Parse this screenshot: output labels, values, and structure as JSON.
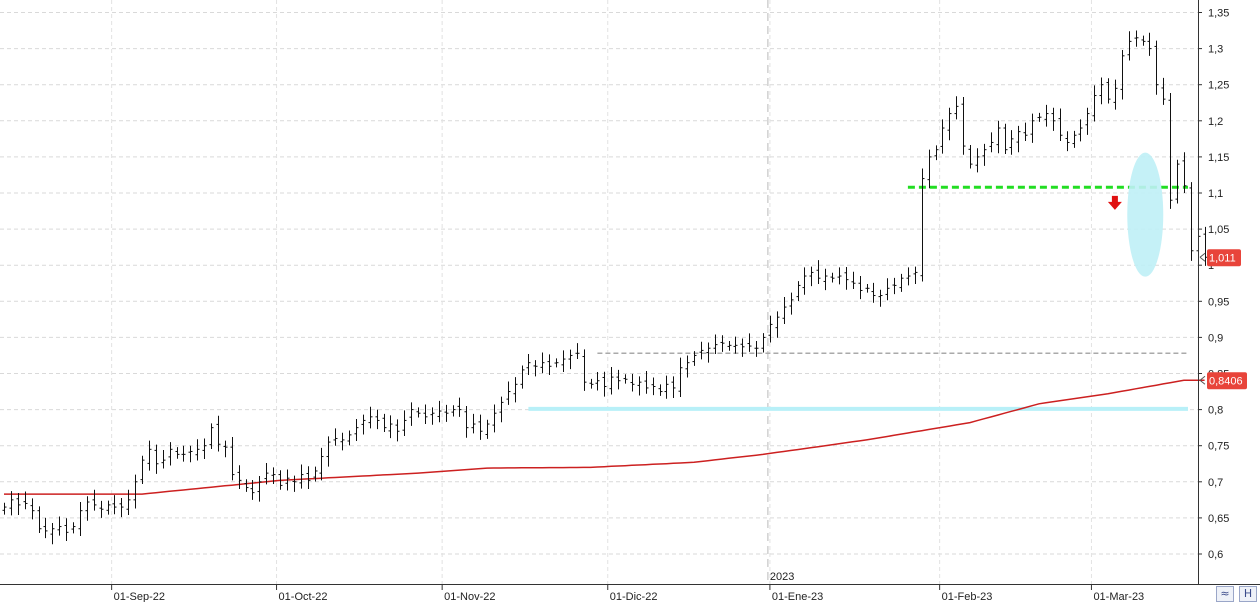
{
  "chart_data": {
    "type": "ohlc",
    "ylim": [
      0.575,
      1.355
    ],
    "y_ticks": [
      "0,6",
      "0,65",
      "0,7",
      "0,75",
      "0,8",
      "0,85",
      "0,9",
      "0,95",
      "1",
      "1,05",
      "1,1",
      "1,15",
      "1,2",
      "1,25",
      "1,3",
      "1,35"
    ],
    "x_labels": [
      "01-Sep-22",
      "01-Oct-22",
      "01-Nov-22",
      "01-Dic-22",
      "01-Ene-23",
      "01-Feb-23",
      "01-Mar-23"
    ],
    "year_label": "2023",
    "last_price_label": "1,011",
    "last_price": 1.011,
    "ma_label": "0,8406",
    "ma_value": 0.8406,
    "support_green": 1.108,
    "resistance_gray": 0.878,
    "support_cyan": 0.801,
    "colors": {
      "bars": "#111111",
      "moving_average": "#cc2020",
      "green_line": "#22dd22",
      "gray_line": "#aaaaaa",
      "cyan_line": "#b8f0f8",
      "ellipse": "#bff0f6",
      "arrow": "#e01010",
      "flag": "#e8443a"
    },
    "close_series": [
      0.665,
      0.675,
      0.668,
      0.67,
      0.66,
      0.635,
      0.632,
      0.635,
      0.638,
      0.63,
      0.638,
      0.66,
      0.672,
      0.668,
      0.662,
      0.668,
      0.665,
      0.665,
      0.675,
      0.7,
      0.73,
      0.745,
      0.725,
      0.73,
      0.745,
      0.738,
      0.738,
      0.742,
      0.745,
      0.75,
      0.775,
      0.752,
      0.748,
      0.71,
      0.702,
      0.692,
      0.685,
      0.7,
      0.712,
      0.71,
      0.695,
      0.705,
      0.7,
      0.71,
      0.702,
      0.715,
      0.735,
      0.755,
      0.76,
      0.758,
      0.765,
      0.775,
      0.785,
      0.79,
      0.785,
      0.775,
      0.78,
      0.77,
      0.785,
      0.8,
      0.795,
      0.79,
      0.795,
      0.798,
      0.795,
      0.8,
      0.8,
      0.775,
      0.78,
      0.77,
      0.78,
      0.795,
      0.81,
      0.825,
      0.835,
      0.855,
      0.865,
      0.86,
      0.865,
      0.86,
      0.865,
      0.87,
      0.875,
      0.878,
      0.838,
      0.835,
      0.84,
      0.832,
      0.845,
      0.84,
      0.842,
      0.835,
      0.838,
      0.83,
      0.832,
      0.825,
      0.835,
      0.83,
      0.858,
      0.865,
      0.875,
      0.882,
      0.885,
      0.89,
      0.892,
      0.889,
      0.889,
      0.887,
      0.888,
      0.885,
      0.9,
      0.918,
      0.928,
      0.942,
      0.952,
      0.972,
      0.985,
      0.99,
      0.982,
      0.985,
      0.982,
      0.985,
      0.98,
      0.975,
      0.965,
      0.968,
      0.958,
      0.958,
      0.968,
      0.972,
      0.982,
      0.985,
      0.99,
      1.12,
      1.15,
      1.16,
      1.19,
      1.21,
      1.22,
      1.165,
      1.14,
      1.15,
      1.16,
      1.17,
      1.19,
      1.16,
      1.175,
      1.185,
      1.18,
      1.2,
      1.205,
      1.21,
      1.2,
      1.18,
      1.17,
      1.18,
      1.19,
      1.21,
      1.235,
      1.25,
      1.23,
      1.245,
      1.29,
      1.31,
      1.315,
      1.31,
      1.3,
      1.25,
      1.23,
      1.09,
      1.14,
      1.11,
      1.02,
      1.04,
      1.011
    ]
  }
}
